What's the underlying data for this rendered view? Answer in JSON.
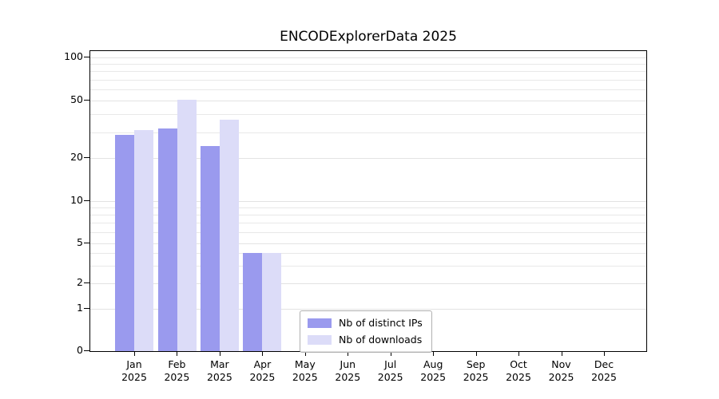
{
  "chart_data": {
    "type": "bar",
    "title": "ENCODExplorerData 2025",
    "categories": [
      "Jan",
      "Feb",
      "Mar",
      "Apr",
      "May",
      "Jun",
      "Jul",
      "Aug",
      "Sep",
      "Oct",
      "Nov",
      "Dec"
    ],
    "year_label": "2025",
    "series": [
      {
        "name": "Nb of distinct IPs",
        "color": "#9a9aee",
        "values": [
          29,
          32,
          24,
          4,
          0,
          0,
          0,
          0,
          0,
          0,
          0,
          0
        ]
      },
      {
        "name": "Nb of downloads",
        "color": "#dcdcf8",
        "values": [
          31,
          51,
          37,
          4,
          0,
          0,
          0,
          0,
          0,
          0,
          0,
          0
        ]
      }
    ],
    "yticks": [
      0,
      1,
      2,
      5,
      10,
      20,
      50,
      100
    ],
    "minor_gridlines": [
      3,
      4,
      6,
      7,
      8,
      9,
      30,
      40,
      60,
      70,
      80,
      90
    ],
    "scale": "symlog",
    "ylim": [
      0,
      100
    ],
    "grid": "horizontal",
    "legend_position": "lower center"
  }
}
